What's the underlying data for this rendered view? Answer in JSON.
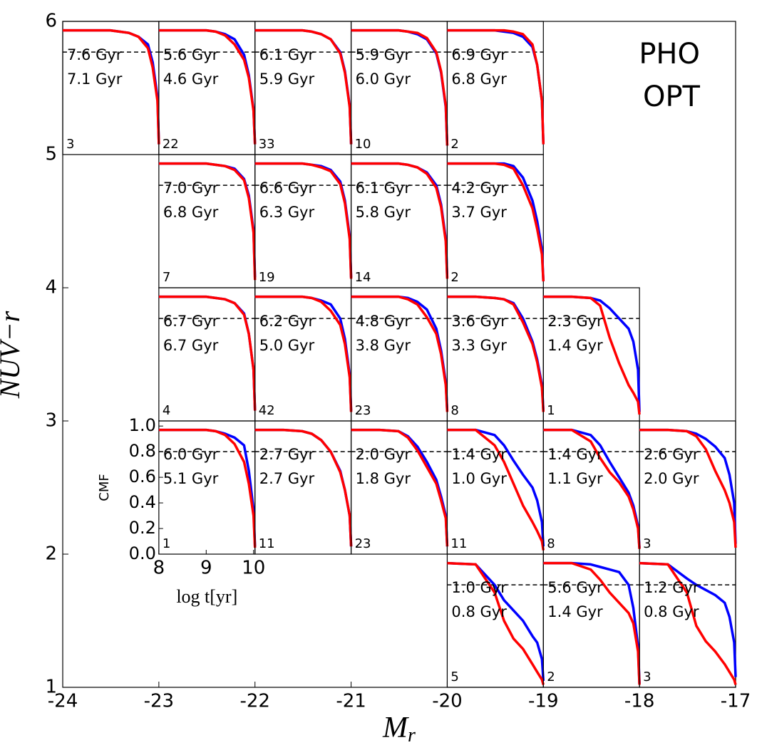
{
  "chart_data": {
    "type": "small-multiples",
    "xlabel": {
      "text": "M",
      "subscript": "r"
    },
    "ylabel": "NUV−r",
    "xlim": [
      -24,
      -17
    ],
    "xticks": [
      -24,
      -23,
      -22,
      -21,
      -20,
      -19,
      -18,
      -17
    ],
    "ylim": [
      1,
      6
    ],
    "yticks": [
      1,
      2,
      3,
      4,
      5,
      6
    ],
    "legend": {
      "loc": "upper right",
      "entries": [
        {
          "name": "PHO",
          "color": "#0000ff"
        },
        {
          "name": "OPT",
          "color": "#ff0000"
        }
      ]
    },
    "inset": {
      "xlabel": "log t[yr]",
      "ylabel": "CMF",
      "xlim": [
        8,
        10.03
      ],
      "ylim": [
        0,
        1.04
      ],
      "xticks": [
        8,
        9,
        10
      ],
      "yticks": [
        {
          "value": 0,
          "label": "0.0"
        },
        {
          "value": 0.2,
          "label": "0.2"
        },
        {
          "value": 0.4,
          "label": "0.4"
        },
        {
          "value": 0.6,
          "label": "0.6"
        },
        {
          "value": 0.8,
          "label": "0.8"
        },
        {
          "value": 1,
          "label": "1.0"
        }
      ],
      "threshold": 0.8,
      "x": [
        8.0,
        8.6,
        9.0,
        9.2,
        9.4,
        9.6,
        9.8,
        9.9,
        10.0,
        10.03
      ]
    },
    "panels": [
      {
        "mr": -24,
        "nuv": 5,
        "count": 3,
        "pho_age": "7.6 Gyr",
        "opt_age": "7.1 Gyr",
        "pho": [
          0.97,
          0.97,
          0.97,
          0.96,
          0.95,
          0.92,
          0.86,
          0.72,
          0.45,
          0.08
        ],
        "opt": [
          0.97,
          0.97,
          0.97,
          0.96,
          0.95,
          0.92,
          0.83,
          0.68,
          0.42,
          0.08
        ]
      },
      {
        "mr": -23,
        "nuv": 5,
        "count": 22,
        "pho_age": "5.6 Gyr",
        "opt_age": "4.6 Gyr",
        "pho": [
          0.97,
          0.97,
          0.97,
          0.96,
          0.94,
          0.9,
          0.78,
          0.62,
          0.35,
          0.08
        ],
        "opt": [
          0.97,
          0.97,
          0.97,
          0.96,
          0.93,
          0.86,
          0.74,
          0.6,
          0.34,
          0.08
        ]
      },
      {
        "mr": -22,
        "nuv": 5,
        "count": 33,
        "pho_age": "6.1 Gyr",
        "opt_age": "5.9 Gyr",
        "pho": [
          0.97,
          0.97,
          0.97,
          0.96,
          0.94,
          0.9,
          0.8,
          0.65,
          0.38,
          0.08
        ],
        "opt": [
          0.97,
          0.97,
          0.97,
          0.96,
          0.94,
          0.9,
          0.79,
          0.64,
          0.37,
          0.08
        ]
      },
      {
        "mr": -21,
        "nuv": 5,
        "count": 10,
        "pho_age": "5.9 Gyr",
        "opt_age": "6.0 Gyr",
        "pho": [
          0.97,
          0.97,
          0.97,
          0.96,
          0.94,
          0.9,
          0.79,
          0.64,
          0.37,
          0.07
        ],
        "opt": [
          0.97,
          0.97,
          0.97,
          0.96,
          0.95,
          0.91,
          0.8,
          0.65,
          0.38,
          0.07
        ]
      },
      {
        "mr": -20,
        "nuv": 5,
        "count": 2,
        "pho_age": "6.9 Gyr",
        "opt_age": "6.8 Gyr",
        "pho": [
          0.97,
          0.97,
          0.97,
          0.96,
          0.95,
          0.92,
          0.84,
          0.7,
          0.42,
          0.08
        ],
        "opt": [
          0.97,
          0.97,
          0.97,
          0.97,
          0.96,
          0.94,
          0.86,
          0.7,
          0.42,
          0.08
        ]
      },
      {
        "mr": -23,
        "nuv": 4,
        "count": 7,
        "pho_age": "7.0 Gyr",
        "opt_age": "6.8 Gyr",
        "pho": [
          0.97,
          0.97,
          0.97,
          0.96,
          0.95,
          0.93,
          0.85,
          0.72,
          0.45,
          0.08
        ],
        "opt": [
          0.97,
          0.97,
          0.97,
          0.96,
          0.95,
          0.92,
          0.84,
          0.7,
          0.43,
          0.06
        ]
      },
      {
        "mr": -22,
        "nuv": 4,
        "count": 19,
        "pho_age": "6.6 Gyr",
        "opt_age": "6.3 Gyr",
        "pho": [
          0.97,
          0.97,
          0.97,
          0.96,
          0.95,
          0.92,
          0.83,
          0.68,
          0.4,
          0.08
        ],
        "opt": [
          0.97,
          0.97,
          0.97,
          0.96,
          0.94,
          0.91,
          0.81,
          0.66,
          0.38,
          0.07
        ]
      },
      {
        "mr": -21,
        "nuv": 4,
        "count": 14,
        "pho_age": "6.1 Gyr",
        "opt_age": "5.8 Gyr",
        "pho": [
          0.97,
          0.97,
          0.97,
          0.96,
          0.94,
          0.9,
          0.8,
          0.65,
          0.38,
          0.08
        ],
        "opt": [
          0.97,
          0.97,
          0.97,
          0.96,
          0.94,
          0.89,
          0.78,
          0.63,
          0.36,
          0.07
        ]
      },
      {
        "mr": -20,
        "nuv": 4,
        "count": 2,
        "pho_age": "4.2 Gyr",
        "opt_age": "3.7 Gyr",
        "pho": [
          0.97,
          0.97,
          0.97,
          0.97,
          0.95,
          0.86,
          0.68,
          0.52,
          0.3,
          0.05
        ],
        "opt": [
          0.97,
          0.97,
          0.97,
          0.96,
          0.93,
          0.8,
          0.62,
          0.46,
          0.26,
          0.05
        ]
      },
      {
        "mr": -23,
        "nuv": 3,
        "count": 4,
        "pho_age": "6.7 Gyr",
        "opt_age": "6.7 Gyr",
        "pho": [
          0.97,
          0.97,
          0.97,
          0.96,
          0.95,
          0.92,
          0.84,
          0.68,
          0.4,
          0.08
        ],
        "opt": [
          0.97,
          0.97,
          0.97,
          0.96,
          0.95,
          0.92,
          0.83,
          0.68,
          0.4,
          0.08
        ]
      },
      {
        "mr": -22,
        "nuv": 3,
        "count": 42,
        "pho_age": "6.2 Gyr",
        "opt_age": "5.0 Gyr",
        "pho": [
          0.97,
          0.97,
          0.97,
          0.96,
          0.94,
          0.91,
          0.8,
          0.64,
          0.36,
          0.08
        ],
        "opt": [
          0.97,
          0.97,
          0.97,
          0.96,
          0.93,
          0.86,
          0.75,
          0.6,
          0.34,
          0.07
        ]
      },
      {
        "mr": -21,
        "nuv": 3,
        "count": 23,
        "pho_age": "4.8 Gyr",
        "opt_age": "3.8 Gyr",
        "pho": [
          0.97,
          0.97,
          0.97,
          0.96,
          0.93,
          0.87,
          0.72,
          0.55,
          0.3,
          0.08
        ],
        "opt": [
          0.97,
          0.97,
          0.97,
          0.95,
          0.91,
          0.81,
          0.68,
          0.52,
          0.28,
          0.07
        ]
      },
      {
        "mr": -20,
        "nuv": 3,
        "count": 8,
        "pho_age": "3.6 Gyr",
        "opt_age": "3.3 Gyr",
        "pho": [
          0.97,
          0.97,
          0.96,
          0.95,
          0.92,
          0.8,
          0.62,
          0.48,
          0.28,
          0.08
        ],
        "opt": [
          0.97,
          0.97,
          0.96,
          0.95,
          0.91,
          0.77,
          0.6,
          0.46,
          0.26,
          0.07
        ]
      },
      {
        "mr": -19,
        "nuv": 3,
        "count": 1,
        "pho_age": "2.3 Gyr",
        "opt_age": "1.4 Gyr",
        "pho": [
          0.97,
          0.97,
          0.96,
          0.94,
          0.88,
          0.8,
          0.72,
          0.62,
          0.4,
          0.07
        ],
        "opt": [
          0.97,
          0.97,
          0.96,
          0.9,
          0.65,
          0.45,
          0.28,
          0.22,
          0.15,
          0.05
        ]
      },
      {
        "mr": -23,
        "nuv": 2,
        "count": 1,
        "pho_age": "6.0 Gyr",
        "opt_age": "5.1 Gyr",
        "show_axes": true,
        "pho": [
          0.97,
          0.97,
          0.97,
          0.96,
          0.94,
          0.91,
          0.85,
          0.65,
          0.35,
          0.06
        ],
        "opt": [
          0.97,
          0.97,
          0.97,
          0.96,
          0.93,
          0.86,
          0.72,
          0.55,
          0.3,
          0.05
        ]
      },
      {
        "mr": -22,
        "nuv": 2,
        "count": 11,
        "pho_age": "2.7 Gyr",
        "opt_age": "2.7 Gyr",
        "pho": [
          0.97,
          0.97,
          0.96,
          0.94,
          0.89,
          0.8,
          0.65,
          0.5,
          0.3,
          0.06
        ],
        "opt": [
          0.97,
          0.97,
          0.96,
          0.94,
          0.89,
          0.8,
          0.64,
          0.5,
          0.3,
          0.06
        ]
      },
      {
        "mr": -21,
        "nuv": 2,
        "count": 23,
        "pho_age": "2.0 Gyr",
        "opt_age": "1.8 Gyr",
        "pho": [
          0.97,
          0.97,
          0.96,
          0.92,
          0.84,
          0.72,
          0.58,
          0.45,
          0.3,
          0.06
        ],
        "opt": [
          0.97,
          0.97,
          0.96,
          0.91,
          0.81,
          0.68,
          0.55,
          0.42,
          0.28,
          0.06
        ]
      },
      {
        "mr": -20,
        "nuv": 2,
        "count": 11,
        "pho_age": "1.4 Gyr",
        "opt_age": "1.0 Gyr",
        "pho": [
          0.97,
          0.97,
          0.93,
          0.85,
          0.73,
          0.62,
          0.52,
          0.42,
          0.25,
          0.06
        ],
        "opt": [
          0.97,
          0.97,
          0.85,
          0.72,
          0.55,
          0.38,
          0.25,
          0.18,
          0.1,
          0.03
        ]
      },
      {
        "mr": -19,
        "nuv": 2,
        "count": 8,
        "pho_age": "1.4 Gyr",
        "opt_age": "1.1 Gyr",
        "pho": [
          0.97,
          0.97,
          0.93,
          0.85,
          0.72,
          0.6,
          0.48,
          0.38,
          0.22,
          0.05
        ],
        "opt": [
          0.97,
          0.97,
          0.88,
          0.75,
          0.64,
          0.56,
          0.45,
          0.35,
          0.2,
          0.04
        ]
      },
      {
        "mr": -18,
        "nuv": 2,
        "count": 3,
        "pho_age": "2.6 Gyr",
        "opt_age": "2.0 Gyr",
        "pho": [
          0.97,
          0.97,
          0.96,
          0.94,
          0.9,
          0.84,
          0.75,
          0.62,
          0.4,
          0.08
        ],
        "opt": [
          0.97,
          0.97,
          0.96,
          0.92,
          0.82,
          0.65,
          0.5,
          0.4,
          0.25,
          0.05
        ]
      },
      {
        "mr": -20,
        "nuv": 1,
        "count": 5,
        "pho_age": "1.0 Gyr",
        "opt_age": "0.8 Gyr",
        "pho": [
          0.97,
          0.96,
          0.8,
          0.68,
          0.6,
          0.52,
          0.4,
          0.35,
          0.22,
          0.05
        ],
        "opt": [
          0.97,
          0.96,
          0.74,
          0.52,
          0.38,
          0.3,
          0.18,
          0.12,
          0.06,
          0.02
        ]
      },
      {
        "mr": -19,
        "nuv": 1,
        "count": 2,
        "pho_age": "5.6 Gyr",
        "opt_age": "1.4 Gyr",
        "pho": [
          0.97,
          0.97,
          0.96,
          0.94,
          0.92,
          0.9,
          0.8,
          0.62,
          0.32,
          0.03
        ],
        "opt": [
          0.97,
          0.97,
          0.92,
          0.84,
          0.74,
          0.66,
          0.58,
          0.5,
          0.28,
          0.02
        ]
      },
      {
        "mr": -18,
        "nuv": 1,
        "count": 3,
        "pho_age": "1.2 Gyr",
        "opt_age": "0.8 Gyr",
        "pho": [
          0.97,
          0.96,
          0.85,
          0.8,
          0.76,
          0.72,
          0.66,
          0.55,
          0.35,
          0.08
        ],
        "opt": [
          0.97,
          0.96,
          0.74,
          0.48,
          0.36,
          0.28,
          0.18,
          0.12,
          0.06,
          0.02
        ]
      }
    ]
  }
}
